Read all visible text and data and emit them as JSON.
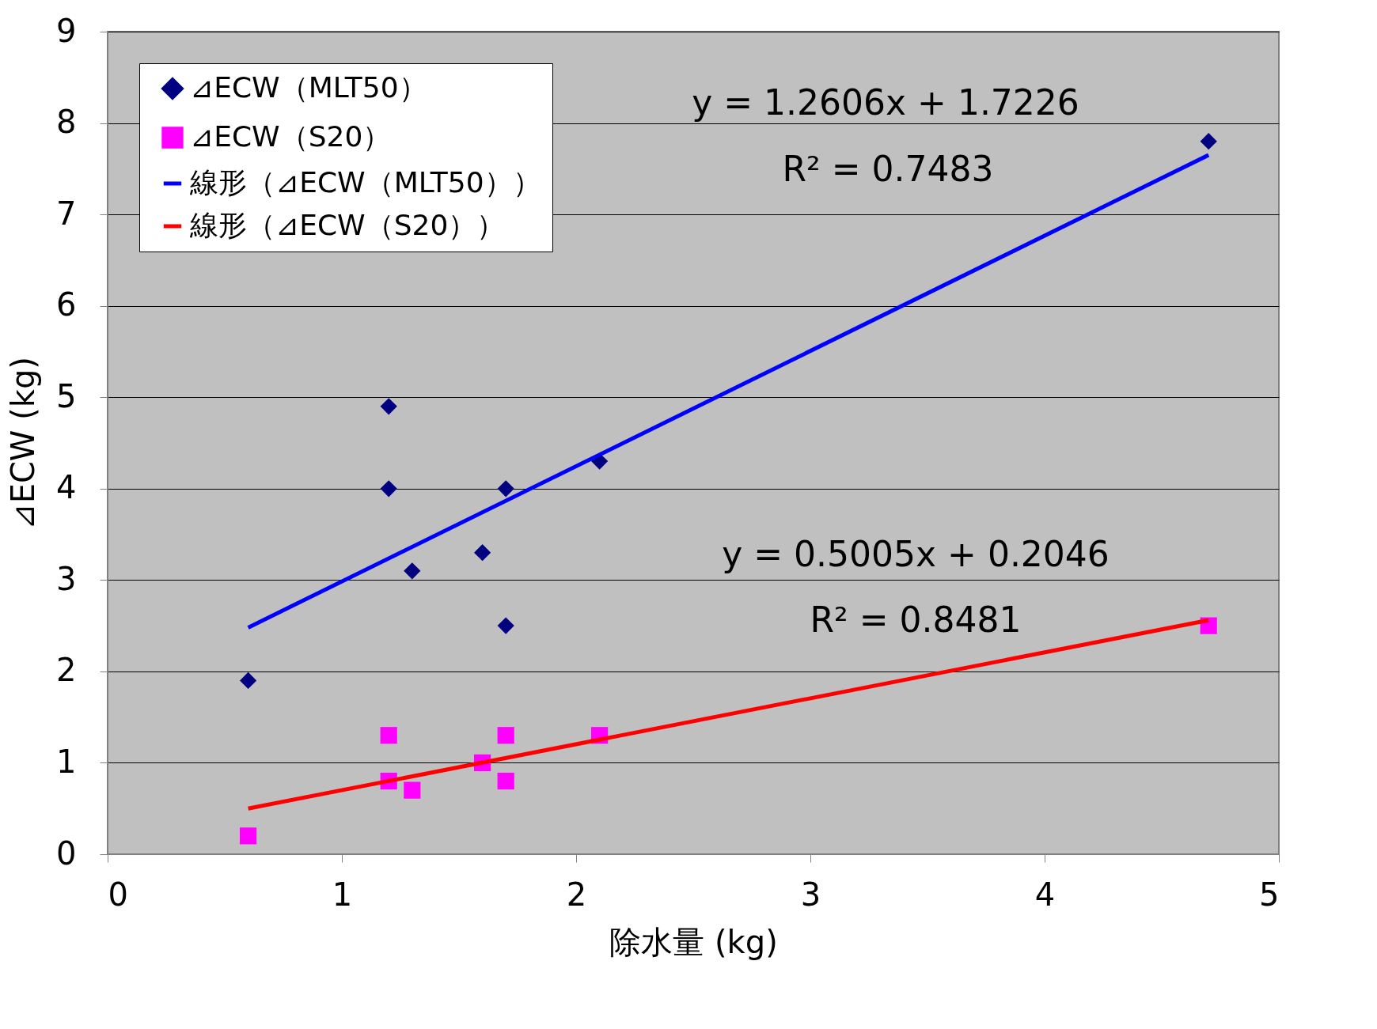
{
  "chart_data": {
    "type": "scatter",
    "xlabel": "除水量 (kg)",
    "ylabel": "⊿ECW (kg)",
    "xlim": [
      0,
      5
    ],
    "xticks": [
      0,
      1,
      2,
      3,
      4,
      5
    ],
    "ylim": [
      0,
      9
    ],
    "yticks": [
      0,
      1,
      2,
      3,
      4,
      5,
      6,
      7,
      8,
      9
    ],
    "grid": "y",
    "legend": "top left",
    "series": [
      {
        "name": "⊿ECW（MLT50）",
        "marker": "diamond",
        "color": "#000080",
        "x": [
          0.6,
          1.2,
          1.2,
          1.3,
          1.6,
          1.7,
          1.7,
          2.1,
          4.7
        ],
        "values": [
          1.9,
          4.9,
          4.0,
          3.1,
          3.3,
          4.0,
          2.5,
          4.3,
          7.8
        ]
      },
      {
        "name": "⊿ECW（S20）",
        "marker": "square",
        "color": "#ff00ff",
        "x": [
          0.6,
          1.2,
          1.2,
          1.3,
          1.6,
          1.7,
          1.7,
          2.1,
          4.7
        ],
        "values": [
          0.2,
          1.3,
          0.8,
          0.7,
          1.0,
          1.3,
          0.8,
          1.3,
          2.5
        ]
      },
      {
        "name": "線形（⊿ECW（MLT50））",
        "type": "line",
        "marker": "none",
        "color": "#0000ff",
        "x": [
          0.6,
          4.7
        ],
        "values": [
          2.48,
          7.65
        ]
      },
      {
        "name": "線形（⊿ECW（S20））",
        "type": "line",
        "marker": "none",
        "color": "#ff0000",
        "x": [
          0.6,
          4.7
        ],
        "values": [
          0.5,
          2.56
        ]
      }
    ],
    "annotations": [
      "y = 1.2606x + 1.7226",
      "R² = 0.7483",
      "y = 0.5005x + 0.2046",
      "R² = 0.8481"
    ]
  }
}
